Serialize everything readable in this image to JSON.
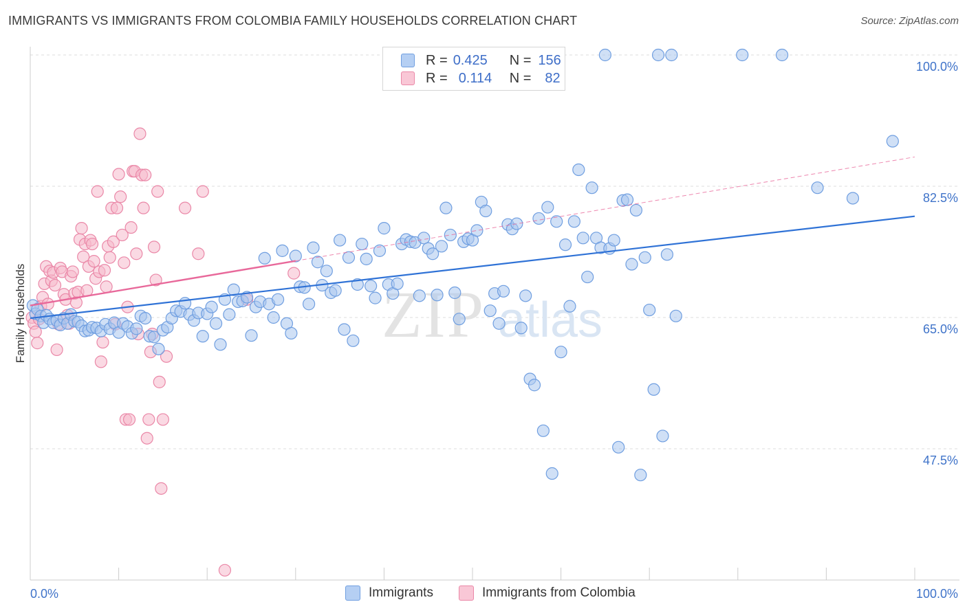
{
  "title": "IMMIGRANTS VS IMMIGRANTS FROM COLOMBIA FAMILY HOUSEHOLDS CORRELATION CHART",
  "source": "Source: ZipAtlas.com",
  "watermark": {
    "zip": "ZIP",
    "atlas": "atlas"
  },
  "legend": {
    "r_label": "R =",
    "n_label": "N =",
    "rows": [
      {
        "name": "Immigrants",
        "r": "0.425",
        "n": "156"
      },
      {
        "name": "Immigrants from Colombia",
        "r": "0.114",
        "n": "82"
      }
    ]
  },
  "colors": {
    "blue_fill": "#a9c6ef",
    "blue_stroke": "#6f9ee0",
    "blue_line": "#2f72d6",
    "pink_fill": "#f6b9cc",
    "pink_stroke": "#ea87a7",
    "pink_line": "#e8689a",
    "axis_text": "#3f73c9"
  },
  "chart_data": {
    "type": "scatter",
    "title": "IMMIGRANTS VS IMMIGRANTS FROM COLOMBIA FAMILY HOUSEHOLDS CORRELATION CHART",
    "xlabel": "",
    "ylabel": "Family Households",
    "xlim": [
      0,
      100
    ],
    "ylim": [
      30,
      100
    ],
    "x_tick_labels": [
      "0.0%",
      "100.0%"
    ],
    "y_ticks": [
      {
        "value": 47.5,
        "label": "47.5%"
      },
      {
        "value": 65.0,
        "label": "65.0%"
      },
      {
        "value": 82.5,
        "label": "82.5%"
      },
      {
        "value": 100.0,
        "label": "100.0%"
      }
    ],
    "grid": "horizontal dashed",
    "series": [
      {
        "name": "Immigrants",
        "r": 0.425,
        "n": 156,
        "trend": {
          "x0": 0,
          "y0": 64.9,
          "x1": 100,
          "y1": 78.5
        },
        "points": [
          [
            0.3,
            66.6
          ],
          [
            0.6,
            65.5
          ],
          [
            0.8,
            66.1
          ],
          [
            1.2,
            65.2
          ],
          [
            1.5,
            64.3
          ],
          [
            1.8,
            65.3
          ],
          [
            2.2,
            64.8
          ],
          [
            2.6,
            64.3
          ],
          [
            3.0,
            64.6
          ],
          [
            3.4,
            64.0
          ],
          [
            3.8,
            64.9
          ],
          [
            4.2,
            64.2
          ],
          [
            4.6,
            65.4
          ],
          [
            5.0,
            64.5
          ],
          [
            5.4,
            64.4
          ],
          [
            5.8,
            63.9
          ],
          [
            6.2,
            63.2
          ],
          [
            6.6,
            63.3
          ],
          [
            7.0,
            63.7
          ],
          [
            7.5,
            63.6
          ],
          [
            8.0,
            63.2
          ],
          [
            8.5,
            64.1
          ],
          [
            9.0,
            63.5
          ],
          [
            9.5,
            64.3
          ],
          [
            10.0,
            63.0
          ],
          [
            10.5,
            64.2
          ],
          [
            11.0,
            63.8
          ],
          [
            11.5,
            62.9
          ],
          [
            12.0,
            63.5
          ],
          [
            12.5,
            65.2
          ],
          [
            13.0,
            64.9
          ],
          [
            13.5,
            62.5
          ],
          [
            14.0,
            62.4
          ],
          [
            14.5,
            60.8
          ],
          [
            15.0,
            63.3
          ],
          [
            15.5,
            63.7
          ],
          [
            16.0,
            64.9
          ],
          [
            16.5,
            65.9
          ],
          [
            17.0,
            65.8
          ],
          [
            17.5,
            66.9
          ],
          [
            18.0,
            65.4
          ],
          [
            18.5,
            64.6
          ],
          [
            19.0,
            65.6
          ],
          [
            19.5,
            62.5
          ],
          [
            20.0,
            65.5
          ],
          [
            20.5,
            66.4
          ],
          [
            21.0,
            64.2
          ],
          [
            21.5,
            61.4
          ],
          [
            22.0,
            67.4
          ],
          [
            22.5,
            65.4
          ],
          [
            23.0,
            68.7
          ],
          [
            23.5,
            67.1
          ],
          [
            24.0,
            67.2
          ],
          [
            24.5,
            67.7
          ],
          [
            25.0,
            62.6
          ],
          [
            25.5,
            66.4
          ],
          [
            26.0,
            67.1
          ],
          [
            26.5,
            72.9
          ],
          [
            27.0,
            66.8
          ],
          [
            27.5,
            65.0
          ],
          [
            28.0,
            67.4
          ],
          [
            28.5,
            73.9
          ],
          [
            29.0,
            64.2
          ],
          [
            29.5,
            62.9
          ],
          [
            30.0,
            73.2
          ],
          [
            30.5,
            69.1
          ],
          [
            31.0,
            69.0
          ],
          [
            31.5,
            66.8
          ],
          [
            32.0,
            74.3
          ],
          [
            32.5,
            72.4
          ],
          [
            33.0,
            69.3
          ],
          [
            33.5,
            71.2
          ],
          [
            34.0,
            68.3
          ],
          [
            34.5,
            68.6
          ],
          [
            35.0,
            75.3
          ],
          [
            35.5,
            63.4
          ],
          [
            36.0,
            73.0
          ],
          [
            36.5,
            61.9
          ],
          [
            37.0,
            69.4
          ],
          [
            37.5,
            74.8
          ],
          [
            38.0,
            72.8
          ],
          [
            38.5,
            69.2
          ],
          [
            39.0,
            67.6
          ],
          [
            39.5,
            73.9
          ],
          [
            40.0,
            76.9
          ],
          [
            40.5,
            69.4
          ],
          [
            41.0,
            68.2
          ],
          [
            41.5,
            69.5
          ],
          [
            42.0,
            74.8
          ],
          [
            42.5,
            75.4
          ],
          [
            43.0,
            75.1
          ],
          [
            43.5,
            75.0
          ],
          [
            44.0,
            67.9
          ],
          [
            44.5,
            75.6
          ],
          [
            45.0,
            74.2
          ],
          [
            45.5,
            73.5
          ],
          [
            46.0,
            68.0
          ],
          [
            46.5,
            74.5
          ],
          [
            47.0,
            79.6
          ],
          [
            47.5,
            76.0
          ],
          [
            48.0,
            68.3
          ],
          [
            48.5,
            64.8
          ],
          [
            49.0,
            75.1
          ],
          [
            49.5,
            75.5
          ],
          [
            50.0,
            75.3
          ],
          [
            50.5,
            76.6
          ],
          [
            51.0,
            80.4
          ],
          [
            51.5,
            79.2
          ],
          [
            52.0,
            65.9
          ],
          [
            52.5,
            68.2
          ],
          [
            53.0,
            64.2
          ],
          [
            53.5,
            68.5
          ],
          [
            54.0,
            77.4
          ],
          [
            54.5,
            76.8
          ],
          [
            55.0,
            77.5
          ],
          [
            55.5,
            63.6
          ],
          [
            56.0,
            67.9
          ],
          [
            56.5,
            56.8
          ],
          [
            57.0,
            56.0
          ],
          [
            57.5,
            78.2
          ],
          [
            58.0,
            49.9
          ],
          [
            58.5,
            79.7
          ],
          [
            59.0,
            44.2
          ],
          [
            59.5,
            77.8
          ],
          [
            60.0,
            60.4
          ],
          [
            60.5,
            74.7
          ],
          [
            61.0,
            66.5
          ],
          [
            61.5,
            77.8
          ],
          [
            62.0,
            84.7
          ],
          [
            62.5,
            75.6
          ],
          [
            63.0,
            70.4
          ],
          [
            63.5,
            82.3
          ],
          [
            64.0,
            75.6
          ],
          [
            64.5,
            74.3
          ],
          [
            65.0,
            100.0
          ],
          [
            65.5,
            74.2
          ],
          [
            66.0,
            75.3
          ],
          [
            66.5,
            47.7
          ],
          [
            67.0,
            80.6
          ],
          [
            67.5,
            80.7
          ],
          [
            68.0,
            72.1
          ],
          [
            68.5,
            79.3
          ],
          [
            69.0,
            44.0
          ],
          [
            69.5,
            73.0
          ],
          [
            70.0,
            66.0
          ],
          [
            70.5,
            55.4
          ],
          [
            71.0,
            100.0
          ],
          [
            71.5,
            49.2
          ],
          [
            72.0,
            73.4
          ],
          [
            72.5,
            100.0
          ],
          [
            73.0,
            65.2
          ],
          [
            80.5,
            100.0
          ],
          [
            85.0,
            100.0
          ],
          [
            89.0,
            82.3
          ],
          [
            93.0,
            80.9
          ],
          [
            97.5,
            88.5
          ]
        ]
      },
      {
        "name": "Immigrants from Colombia",
        "r": 0.114,
        "n": 82,
        "trend": {
          "x0": 0,
          "y0": 66.6,
          "x1": 100,
          "y1": 86.4
        },
        "points": [
          [
            0.2,
            65.0
          ],
          [
            0.4,
            64.2
          ],
          [
            0.6,
            63.1
          ],
          [
            0.8,
            61.6
          ],
          [
            1.0,
            64.8
          ],
          [
            1.2,
            66.5
          ],
          [
            1.4,
            67.7
          ],
          [
            1.6,
            69.5
          ],
          [
            1.8,
            71.8
          ],
          [
            2.0,
            66.8
          ],
          [
            2.2,
            71.2
          ],
          [
            2.4,
            69.9
          ],
          [
            2.6,
            71.0
          ],
          [
            2.8,
            69.3
          ],
          [
            3.0,
            60.7
          ],
          [
            3.2,
            64.1
          ],
          [
            3.4,
            71.6
          ],
          [
            3.6,
            71.1
          ],
          [
            3.8,
            68.1
          ],
          [
            4.0,
            67.4
          ],
          [
            4.2,
            65.3
          ],
          [
            4.4,
            64.2
          ],
          [
            4.6,
            70.5
          ],
          [
            4.8,
            71.1
          ],
          [
            5.0,
            68.2
          ],
          [
            5.2,
            67.0
          ],
          [
            5.4,
            68.4
          ],
          [
            5.6,
            75.4
          ],
          [
            5.8,
            76.9
          ],
          [
            6.0,
            73.1
          ],
          [
            6.2,
            74.8
          ],
          [
            6.4,
            68.6
          ],
          [
            6.6,
            71.8
          ],
          [
            6.8,
            75.3
          ],
          [
            7.0,
            74.8
          ],
          [
            7.2,
            72.5
          ],
          [
            7.4,
            70.2
          ],
          [
            7.6,
            81.8
          ],
          [
            7.8,
            71.1
          ],
          [
            8.0,
            59.1
          ],
          [
            8.2,
            61.7
          ],
          [
            8.4,
            71.3
          ],
          [
            8.6,
            69.1
          ],
          [
            8.8,
            74.5
          ],
          [
            9.0,
            73.0
          ],
          [
            9.2,
            79.6
          ],
          [
            9.4,
            75.1
          ],
          [
            9.6,
            64.1
          ],
          [
            9.8,
            79.6
          ],
          [
            10.0,
            84.1
          ],
          [
            10.2,
            81.1
          ],
          [
            10.4,
            76.0
          ],
          [
            10.6,
            72.3
          ],
          [
            10.8,
            51.4
          ],
          [
            11.0,
            66.4
          ],
          [
            11.2,
            51.4
          ],
          [
            11.4,
            77.0
          ],
          [
            11.6,
            84.5
          ],
          [
            11.8,
            84.5
          ],
          [
            12.0,
            73.5
          ],
          [
            12.2,
            62.8
          ],
          [
            12.4,
            89.5
          ],
          [
            12.6,
            84.0
          ],
          [
            12.8,
            79.6
          ],
          [
            13.0,
            84.0
          ],
          [
            13.2,
            48.9
          ],
          [
            13.4,
            51.4
          ],
          [
            13.6,
            60.4
          ],
          [
            13.8,
            62.8
          ],
          [
            14.0,
            74.4
          ],
          [
            14.2,
            70.0
          ],
          [
            14.4,
            81.8
          ],
          [
            14.6,
            56.4
          ],
          [
            14.8,
            42.2
          ],
          [
            15.0,
            51.4
          ],
          [
            15.4,
            59.8
          ],
          [
            17.5,
            79.6
          ],
          [
            19.0,
            73.5
          ],
          [
            19.5,
            81.8
          ],
          [
            22.0,
            31.3
          ],
          [
            24.5,
            67.4
          ],
          [
            29.8,
            70.9
          ]
        ]
      }
    ]
  }
}
